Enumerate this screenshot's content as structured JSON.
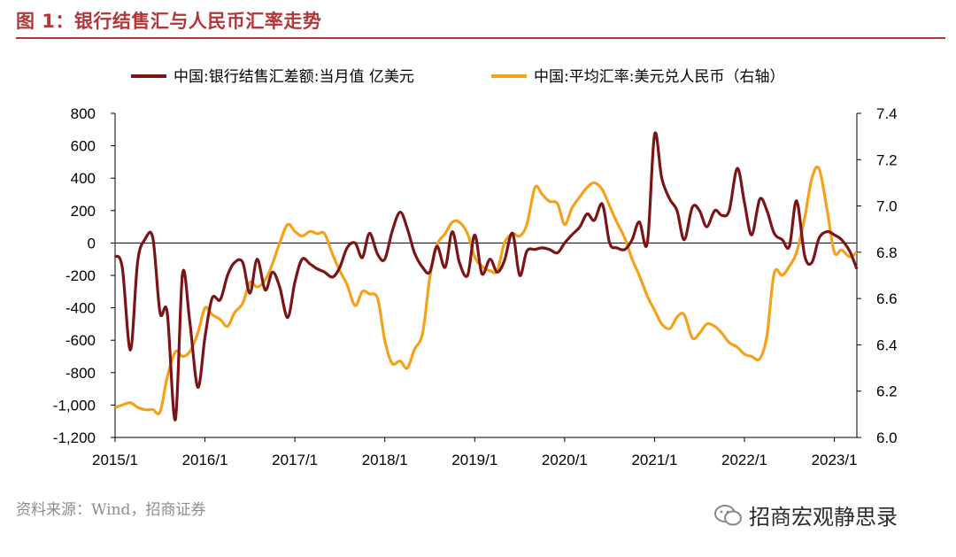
{
  "figure": {
    "title": "图 1：银行结售汇与人民币汇率走势",
    "source": "资料来源：Wind，招商证券",
    "watermark": "招商宏观静思录"
  },
  "colors": {
    "accent": "#b0373a",
    "series1": "#7b1416",
    "series2": "#f4a21c",
    "axis": "#000000"
  },
  "chart_data": {
    "type": "line",
    "title": "",
    "x_ticks": [
      "2015/1",
      "2016/1",
      "2017/1",
      "2018/1",
      "2019/1",
      "2020/1",
      "2021/1",
      "2022/1",
      "2023/1"
    ],
    "x_range": [
      2015.0,
      2023.25
    ],
    "y_left": {
      "min": -1200,
      "max": 800,
      "ticks": [
        800,
        600,
        400,
        200,
        0,
        -200,
        -400,
        -600,
        -800,
        -1000,
        -1200
      ],
      "tick_labels": [
        "800",
        "600",
        "400",
        "200",
        "0",
        "-200",
        "-400",
        "-600",
        "-800",
        "-1,000",
        "-1,200"
      ]
    },
    "y_right": {
      "min": 6.0,
      "max": 7.4,
      "ticks": [
        7.4,
        7.2,
        7.0,
        6.8,
        6.6,
        6.4,
        6.2,
        6.0
      ],
      "tick_labels": [
        "7.4",
        "7.2",
        "7.0",
        "6.8",
        "6.6",
        "6.4",
        "6.2",
        "6.0"
      ]
    },
    "series": [
      {
        "name": "中国:银行结售汇差额:当月值 亿美元",
        "axis": "left",
        "x": [
          2015.0,
          2015.08,
          2015.17,
          2015.25,
          2015.33,
          2015.42,
          2015.5,
          2015.58,
          2015.67,
          2015.75,
          2015.83,
          2015.92,
          2016.0,
          2016.08,
          2016.17,
          2016.25,
          2016.33,
          2016.42,
          2016.5,
          2016.58,
          2016.67,
          2016.75,
          2016.83,
          2016.92,
          2017.0,
          2017.08,
          2017.17,
          2017.25,
          2017.33,
          2017.42,
          2017.5,
          2017.58,
          2017.67,
          2017.75,
          2017.83,
          2017.92,
          2018.0,
          2018.08,
          2018.17,
          2018.25,
          2018.33,
          2018.42,
          2018.5,
          2018.58,
          2018.67,
          2018.75,
          2018.83,
          2018.92,
          2019.0,
          2019.08,
          2019.17,
          2019.25,
          2019.33,
          2019.42,
          2019.5,
          2019.58,
          2019.67,
          2019.75,
          2019.83,
          2019.92,
          2020.0,
          2020.08,
          2020.17,
          2020.25,
          2020.33,
          2020.42,
          2020.5,
          2020.58,
          2020.67,
          2020.75,
          2020.83,
          2020.92,
          2021.0,
          2021.08,
          2021.17,
          2021.25,
          2021.33,
          2021.42,
          2021.5,
          2021.58,
          2021.67,
          2021.75,
          2021.83,
          2021.92,
          2022.0,
          2022.08,
          2022.17,
          2022.25,
          2022.33,
          2022.42,
          2022.5,
          2022.58,
          2022.67,
          2022.75,
          2022.83,
          2022.92,
          2023.0,
          2023.08,
          2023.17,
          2023.25
        ],
        "values": [
          -80,
          -150,
          -660,
          -120,
          20,
          30,
          -430,
          -430,
          -1090,
          -190,
          -480,
          -890,
          -580,
          -340,
          -350,
          -200,
          -120,
          -120,
          -310,
          -100,
          -290,
          -180,
          -270,
          -460,
          -240,
          -100,
          -130,
          -160,
          -180,
          -210,
          -150,
          -30,
          0,
          -90,
          60,
          -70,
          -100,
          70,
          190,
          90,
          -60,
          -150,
          -180,
          -20,
          -150,
          70,
          -120,
          -200,
          50,
          -190,
          -100,
          -180,
          -110,
          60,
          -200,
          -50,
          -40,
          -30,
          -40,
          -60,
          0,
          50,
          100,
          180,
          140,
          240,
          0,
          -30,
          -40,
          20,
          130,
          0,
          670,
          400,
          270,
          200,
          20,
          220,
          200,
          100,
          200,
          170,
          200,
          460,
          250,
          50,
          270,
          200,
          60,
          20,
          -20,
          260,
          -80,
          -120,
          30,
          70,
          50,
          20,
          -50,
          -160
        ]
      },
      {
        "name": "中国:平均汇率:美元兑人民币（右轴）",
        "axis": "right",
        "x": [
          2015.0,
          2015.08,
          2015.17,
          2015.25,
          2015.33,
          2015.42,
          2015.5,
          2015.58,
          2015.67,
          2015.75,
          2015.83,
          2015.92,
          2016.0,
          2016.08,
          2016.17,
          2016.25,
          2016.33,
          2016.42,
          2016.5,
          2016.58,
          2016.67,
          2016.75,
          2016.83,
          2016.92,
          2017.0,
          2017.08,
          2017.17,
          2017.25,
          2017.33,
          2017.42,
          2017.5,
          2017.58,
          2017.67,
          2017.75,
          2017.83,
          2017.92,
          2018.0,
          2018.08,
          2018.17,
          2018.25,
          2018.33,
          2018.42,
          2018.5,
          2018.58,
          2018.67,
          2018.75,
          2018.83,
          2018.92,
          2019.0,
          2019.08,
          2019.17,
          2019.25,
          2019.33,
          2019.42,
          2019.5,
          2019.58,
          2019.67,
          2019.75,
          2019.83,
          2019.92,
          2020.0,
          2020.08,
          2020.17,
          2020.25,
          2020.33,
          2020.42,
          2020.5,
          2020.58,
          2020.67,
          2020.75,
          2020.83,
          2020.92,
          2021.0,
          2021.08,
          2021.17,
          2021.25,
          2021.33,
          2021.42,
          2021.5,
          2021.58,
          2021.67,
          2021.75,
          2021.83,
          2021.92,
          2022.0,
          2022.08,
          2022.17,
          2022.25,
          2022.33,
          2022.42,
          2022.5,
          2022.58,
          2022.67,
          2022.75,
          2022.83,
          2022.92,
          2023.0,
          2023.08,
          2023.17,
          2023.25
        ],
        "values": [
          6.13,
          6.14,
          6.15,
          6.13,
          6.12,
          6.12,
          6.11,
          6.26,
          6.37,
          6.35,
          6.37,
          6.45,
          6.56,
          6.53,
          6.51,
          6.48,
          6.54,
          6.58,
          6.67,
          6.65,
          6.68,
          6.75,
          6.84,
          6.92,
          6.89,
          6.87,
          6.89,
          6.88,
          6.88,
          6.79,
          6.72,
          6.66,
          6.57,
          6.63,
          6.62,
          6.6,
          6.42,
          6.32,
          6.33,
          6.3,
          6.38,
          6.45,
          6.69,
          6.83,
          6.88,
          6.93,
          6.93,
          6.88,
          6.78,
          6.74,
          6.72,
          6.72,
          6.84,
          6.88,
          6.87,
          6.92,
          7.08,
          7.05,
          7.02,
          7.01,
          6.92,
          6.99,
          7.04,
          7.08,
          7.1,
          7.07,
          7.0,
          6.93,
          6.86,
          6.77,
          6.7,
          6.61,
          6.55,
          6.49,
          6.47,
          6.52,
          6.53,
          6.43,
          6.45,
          6.49,
          6.48,
          6.45,
          6.41,
          6.39,
          6.36,
          6.35,
          6.34,
          6.44,
          6.71,
          6.7,
          6.74,
          6.8,
          6.95,
          7.12,
          7.16,
          6.98,
          6.8,
          6.81,
          6.78,
          6.8
        ]
      }
    ]
  }
}
